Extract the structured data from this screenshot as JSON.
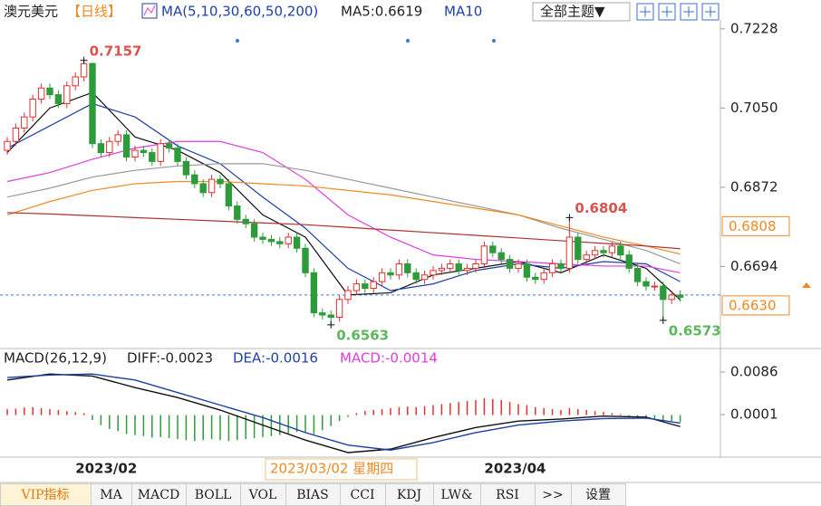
{
  "header": {
    "symbol": "澳元美元",
    "period": "【日线】",
    "indicator": "MA(5,10,30,60,50,200)",
    "ma5": "MA5:0.6619",
    "ma10": "MA10",
    "theme": "全部主题▼"
  },
  "chart_data": [
    {
      "type": "candlestick",
      "up_color": "#e0322f",
      "down_color": "#2e9b3a",
      "categories": [
        null,
        null,
        null,
        null,
        null,
        null,
        null,
        null,
        "2023/02",
        null,
        null,
        null,
        null,
        null,
        null,
        null,
        null,
        null,
        null,
        null,
        null,
        null,
        null,
        null,
        null,
        null,
        null,
        null,
        null,
        null,
        null,
        null,
        null,
        null,
        null,
        null,
        null,
        null,
        null,
        null,
        null,
        null,
        null,
        null,
        null,
        null,
        null,
        null,
        null,
        null,
        null,
        null,
        null,
        null,
        null,
        null,
        "2023/04",
        null,
        null,
        null,
        null,
        null,
        null,
        null,
        null,
        null,
        null,
        null,
        null,
        null,
        null,
        null,
        null,
        null,
        null,
        null,
        null,
        null,
        null,
        null
      ],
      "crosshair_label": "2023/03/02 星期四",
      "open": [
        0.6955,
        0.6975,
        0.7005,
        0.703,
        0.707,
        0.7095,
        0.708,
        0.706,
        0.71,
        0.712,
        0.715,
        0.697,
        0.695,
        0.6975,
        0.699,
        0.694,
        0.6955,
        0.695,
        0.693,
        0.697,
        0.696,
        0.693,
        0.69,
        0.688,
        0.686,
        0.689,
        0.688,
        0.683,
        0.68,
        0.679,
        0.676,
        0.6755,
        0.675,
        0.6745,
        0.676,
        0.6735,
        0.668,
        0.659,
        0.6585,
        0.658,
        0.662,
        0.664,
        0.6655,
        0.6645,
        0.666,
        0.668,
        0.6675,
        0.67,
        0.668,
        0.6665,
        0.6675,
        0.6685,
        0.669,
        0.67,
        0.6685,
        0.669,
        0.67,
        0.674,
        0.6725,
        0.671,
        0.669,
        0.67,
        0.667,
        0.6665,
        0.668,
        0.67,
        0.669,
        0.676,
        0.671,
        0.672,
        0.673,
        0.6725,
        0.674,
        0.672,
        0.669,
        0.666,
        0.665,
        0.665,
        0.662,
        0.663
      ],
      "high": [
        0.6985,
        0.7015,
        0.704,
        0.708,
        0.7105,
        0.7105,
        0.709,
        0.711,
        0.713,
        0.7157,
        0.7152,
        0.698,
        0.6985,
        0.7,
        0.7,
        0.6965,
        0.6965,
        0.696,
        0.698,
        0.698,
        0.697,
        0.694,
        0.691,
        0.689,
        0.69,
        0.69,
        0.689,
        0.684,
        0.681,
        0.68,
        0.677,
        0.6765,
        0.676,
        0.677,
        0.677,
        0.6745,
        0.669,
        0.66,
        0.6595,
        0.663,
        0.665,
        0.6665,
        0.6665,
        0.667,
        0.669,
        0.669,
        0.671,
        0.671,
        0.669,
        0.6685,
        0.6695,
        0.67,
        0.671,
        0.671,
        0.67,
        0.671,
        0.675,
        0.675,
        0.6735,
        0.672,
        0.671,
        0.671,
        0.668,
        0.669,
        0.671,
        0.671,
        0.6804,
        0.677,
        0.673,
        0.674,
        0.674,
        0.675,
        0.675,
        0.673,
        0.67,
        0.667,
        0.666,
        0.666,
        0.664,
        0.664
      ],
      "low": [
        0.6945,
        0.6965,
        0.6995,
        0.702,
        0.706,
        0.707,
        0.705,
        0.705,
        0.709,
        0.711,
        0.696,
        0.694,
        0.694,
        0.6965,
        0.693,
        0.693,
        0.694,
        0.692,
        0.692,
        0.695,
        0.692,
        0.689,
        0.687,
        0.685,
        0.685,
        0.687,
        0.682,
        0.679,
        0.678,
        0.675,
        0.6745,
        0.674,
        0.6735,
        0.6735,
        0.6725,
        0.667,
        0.658,
        0.6575,
        0.6563,
        0.657,
        0.661,
        0.663,
        0.6635,
        0.6635,
        0.665,
        0.6665,
        0.6665,
        0.667,
        0.6655,
        0.6655,
        0.6665,
        0.6675,
        0.668,
        0.6675,
        0.6675,
        0.668,
        0.669,
        0.6715,
        0.67,
        0.668,
        0.668,
        0.666,
        0.6655,
        0.6655,
        0.667,
        0.668,
        0.668,
        0.67,
        0.67,
        0.671,
        0.6715,
        0.6715,
        0.671,
        0.668,
        0.665,
        0.664,
        0.664,
        0.6573,
        0.661,
        0.6615
      ],
      "close": [
        0.6975,
        0.7005,
        0.703,
        0.707,
        0.7095,
        0.708,
        0.706,
        0.71,
        0.712,
        0.715,
        0.697,
        0.695,
        0.6975,
        0.699,
        0.694,
        0.6955,
        0.695,
        0.693,
        0.697,
        0.696,
        0.693,
        0.69,
        0.688,
        0.686,
        0.689,
        0.688,
        0.683,
        0.68,
        0.679,
        0.676,
        0.6755,
        0.675,
        0.6745,
        0.676,
        0.6735,
        0.668,
        0.659,
        0.6585,
        0.658,
        0.662,
        0.664,
        0.6655,
        0.6645,
        0.666,
        0.668,
        0.6675,
        0.67,
        0.668,
        0.6665,
        0.6675,
        0.6685,
        0.669,
        0.67,
        0.6685,
        0.669,
        0.67,
        0.674,
        0.6725,
        0.671,
        0.669,
        0.67,
        0.667,
        0.6665,
        0.668,
        0.67,
        0.669,
        0.676,
        0.671,
        0.672,
        0.673,
        0.6725,
        0.674,
        0.672,
        0.669,
        0.666,
        0.665,
        0.665,
        0.662,
        0.663,
        0.6625
      ],
      "ylim": [
        0.652,
        0.7248
      ],
      "yticks": [
        0.7228,
        {
          "value": 0.705,
          "label": "0.7050"
        },
        0.6872,
        0.6694
      ],
      "ref_lines": [
        {
          "value": 0.6808,
          "color": "#f08a24",
          "dashed": false
        },
        {
          "value": 0.663,
          "label": "0.6630",
          "color": "#f08a24",
          "dashed": true
        }
      ],
      "annotations": [
        "0.7157",
        "0.6563",
        "0.6804",
        "0.6573"
      ],
      "ma_lines": {
        "x": [
          0,
          5,
          10,
          15,
          20,
          25,
          30,
          35,
          40,
          45,
          50,
          55,
          60,
          65,
          70,
          75,
          79
        ],
        "series": [
          {
            "color": "#111111",
            "values": [
              0.695,
              0.705,
              0.7085,
              0.6985,
              0.6955,
              0.6905,
              0.681,
              0.676,
              0.663,
              0.6635,
              0.6675,
              0.669,
              0.6705,
              0.668,
              0.672,
              0.669,
              0.6619
            ]
          },
          {
            "color": "#1f3fa8",
            "values": [
              0.696,
              0.701,
              0.706,
              0.703,
              0.6965,
              0.6925,
              0.685,
              0.678,
              0.669,
              0.664,
              0.6655,
              0.6685,
              0.67,
              0.669,
              0.6705,
              0.67,
              0.666
            ]
          },
          {
            "color": "#e03ce0",
            "values": [
              0.6885,
              0.6905,
              0.6935,
              0.696,
              0.6975,
              0.6975,
              0.695,
              0.689,
              0.681,
              0.676,
              0.672,
              0.671,
              0.6705,
              0.67,
              0.6695,
              0.6695,
              0.668
            ]
          },
          {
            "color": "#999999",
            "values": [
              0.685,
              0.687,
              0.6895,
              0.691,
              0.692,
              0.6925,
              0.6925,
              0.691,
              0.689,
              0.687,
              0.685,
              0.683,
              0.681,
              0.678,
              0.6755,
              0.673,
              0.67
            ]
          },
          {
            "color": "#f08a24",
            "values": [
              0.681,
              0.684,
              0.6865,
              0.688,
              0.6885,
              0.6885,
              0.688,
              0.6875,
              0.6865,
              0.6855,
              0.684,
              0.6825,
              0.681,
              0.6785,
              0.676,
              0.674,
              0.6722
            ]
          },
          {
            "color": "#b03030",
            "values": [
              0.6815,
              0.6812,
              0.6808,
              0.6804,
              0.68,
              0.6796,
              0.6792,
              0.6788,
              0.6782,
              0.6776,
              0.677,
              0.6764,
              0.6758,
              0.6752,
              0.6746,
              0.674,
              0.6734
            ]
          }
        ]
      }
    },
    {
      "type": "macd",
      "title": "MACD(26,12,9)",
      "diff_label": "DIFF:-0.0023",
      "dea_label": "DEA:-0.0016",
      "macd_label": "MACD:-0.0014",
      "up_color": "#e0322f",
      "down_color": "#2e9b3a",
      "ylim": [
        -0.0075,
        0.0115
      ],
      "yticks": [
        0.0086,
        0.0001
      ],
      "histogram": [
        0.0012,
        0.0013,
        0.0015,
        0.0016,
        0.0014,
        0.0012,
        0.001,
        0.0008,
        0.0006,
        0.0004,
        -0.001,
        -0.002,
        -0.0028,
        -0.0032,
        -0.0038,
        -0.004,
        -0.0042,
        -0.0045,
        -0.0044,
        -0.0046,
        -0.0048,
        -0.005,
        -0.0052,
        -0.005,
        -0.0048,
        -0.005,
        -0.0052,
        -0.005,
        -0.0048,
        -0.0046,
        -0.0044,
        -0.0042,
        -0.004,
        -0.0036,
        -0.0034,
        -0.0036,
        -0.0038,
        -0.003,
        -0.0022,
        -0.0012,
        -0.0004,
        0.0004,
        0.0008,
        0.001,
        0.0012,
        0.0014,
        0.0016,
        0.0017,
        0.0016,
        0.0018,
        0.002,
        0.0022,
        0.0024,
        0.0026,
        0.0028,
        0.003,
        0.0034,
        0.0032,
        0.003,
        0.0026,
        0.0022,
        0.002,
        0.0016,
        0.0014,
        0.0012,
        0.001,
        0.0014,
        0.0012,
        0.001,
        0.0008,
        0.0006,
        0.0004,
        0.0002,
        -0.0002,
        -0.0006,
        -0.0008,
        -0.001,
        -0.0012,
        -0.0012,
        -0.0014
      ],
      "lines": {
        "x": [
          0,
          5,
          10,
          15,
          20,
          25,
          30,
          35,
          40,
          45,
          50,
          55,
          60,
          65,
          70,
          75,
          79
        ],
        "series": [
          {
            "color": "#111111",
            "values": [
              0.007,
              0.0082,
              0.0078,
              0.0055,
              0.0035,
              0.001,
              -0.002,
              -0.005,
              -0.0075,
              -0.0068,
              -0.0045,
              -0.0025,
              -0.0012,
              -0.0008,
              -0.0002,
              -0.0004,
              -0.0023
            ]
          },
          {
            "color": "#1f3fa8",
            "values": [
              0.0075,
              0.008,
              0.0082,
              0.007,
              0.0045,
              0.002,
              -0.0005,
              -0.0035,
              -0.006,
              -0.007,
              -0.0055,
              -0.0035,
              -0.002,
              -0.0012,
              -0.0007,
              -0.0006,
              -0.0016
            ]
          }
        ]
      }
    }
  ],
  "tabs": [
    "VIP指标",
    "MA",
    "MACD",
    "BOLL",
    "VOL",
    "BIAS",
    "CCI",
    "KDJ",
    "LW&",
    "RSI",
    ">>",
    "设置"
  ]
}
